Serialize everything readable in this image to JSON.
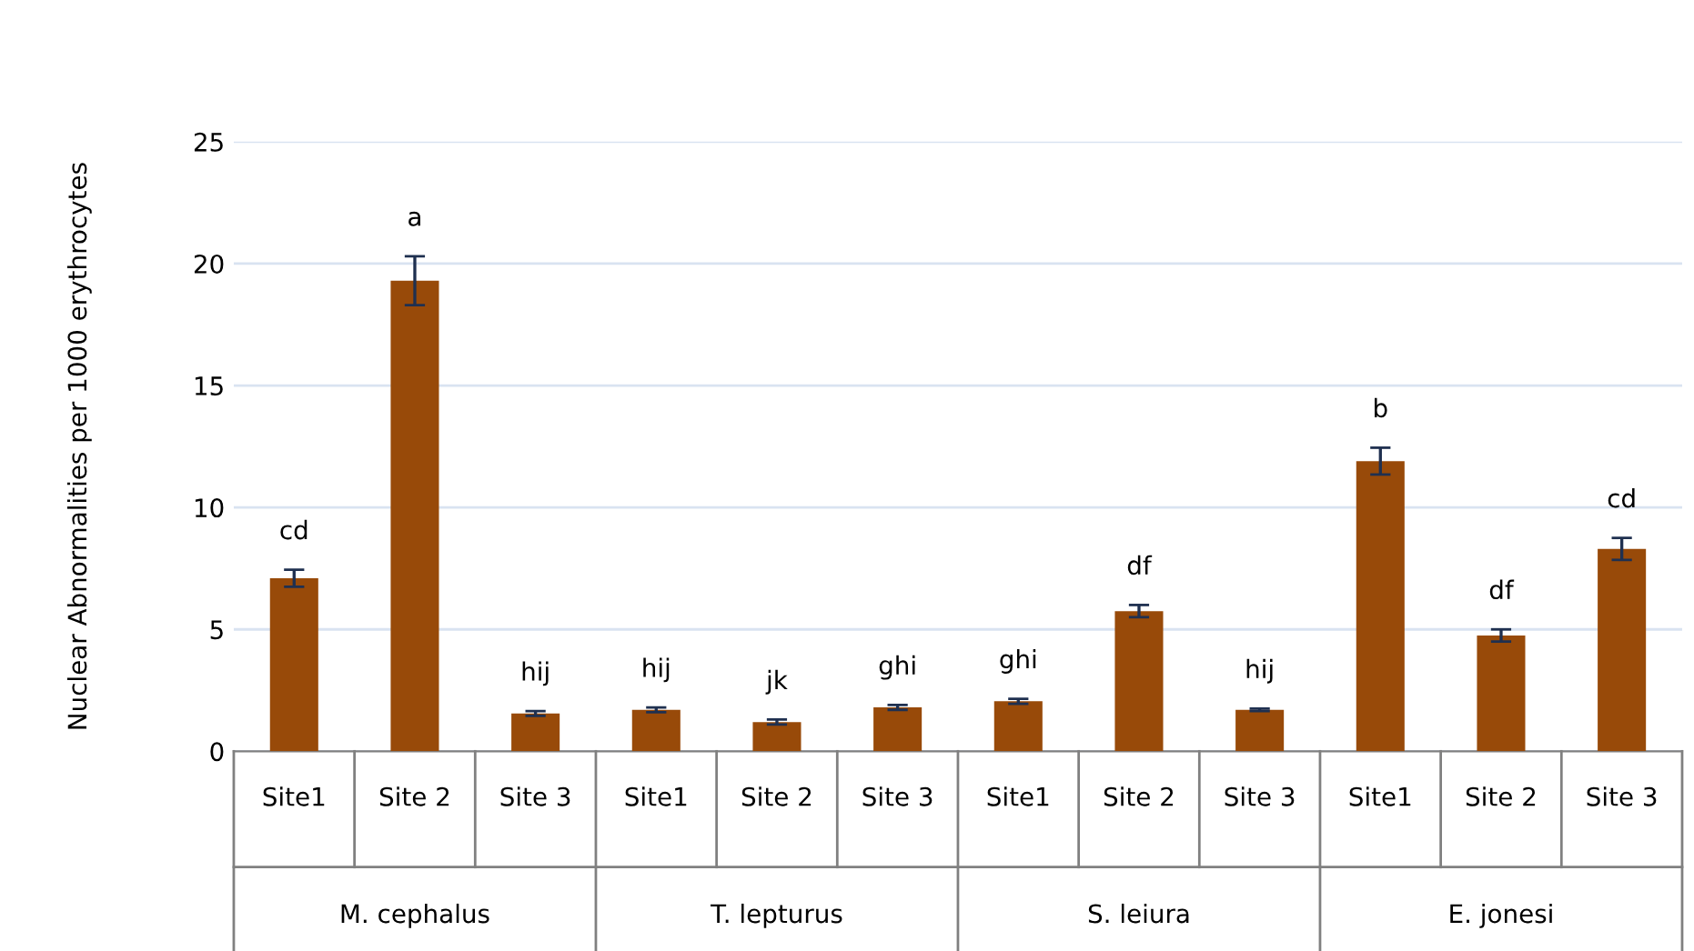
{
  "chart_data": {
    "type": "bar",
    "ylabel": "Nuclear Abnormalities per 1000 erythrocytes",
    "categories": [
      "Site1",
      "Site 2",
      "Site 3",
      "Site1",
      "Site 2",
      "Site 3",
      "Site1",
      "Site 2",
      "Site 3",
      "Site1",
      "Site 2",
      "Site 3"
    ],
    "values": [
      7.1,
      19.3,
      1.55,
      1.7,
      1.2,
      1.8,
      2.05,
      5.75,
      1.7,
      11.9,
      4.75,
      8.3
    ],
    "errors": [
      0.35,
      1.0,
      0.1,
      0.1,
      0.1,
      0.1,
      0.1,
      0.25,
      0.05,
      0.55,
      0.25,
      0.45
    ],
    "value_labels": [
      "cd",
      "a",
      "hij",
      "hij",
      "jk",
      "ghi",
      "ghi",
      "df",
      "hij",
      "b",
      "df",
      "cd"
    ],
    "annotations": [
      "M. cephalus",
      "T. lepturus",
      "S. leiura",
      "E. jonesi"
    ],
    "color": "#984a09",
    "ylim": [
      0,
      25
    ],
    "yticks": [
      0,
      5,
      10,
      15,
      20,
      25
    ],
    "grid": "y"
  }
}
